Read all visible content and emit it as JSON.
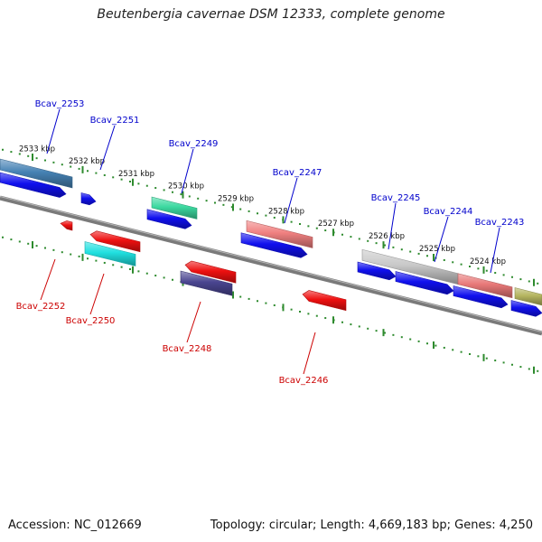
{
  "title": "Beutenbergia cavernae DSM 12333, complete genome",
  "accession_text": "Accession: NC_012669",
  "summary_text": "Topology: circular; Length: 4,669,183 bp; Genes: 4,250",
  "colors": {
    "backbone": "#7a7a7a",
    "ticks": "#2e8b2e",
    "forward_label": "#0000cc",
    "reverse_label": "#cc0000"
  },
  "kbp_labels": [
    "2533 kbp",
    "2532 kbp",
    "2531 kbp",
    "2530 kbp",
    "2529 kbp",
    "2528 kbp",
    "2527 kbp",
    "2526 kbp",
    "2525 kbp",
    "2524 kbp"
  ],
  "forward_genes": [
    {
      "label": "Bcav_2253",
      "color": "#4682b4"
    },
    {
      "label": "Bcav_2251",
      "color": "#1010ee"
    },
    {
      "label": "Bcav_2249",
      "color": "#3cd9a0"
    },
    {
      "label": "Bcav_2247",
      "color": "#f08080"
    },
    {
      "label": "Bcav_2245",
      "color": "#c8c8c8"
    },
    {
      "label": "Bcav_2244",
      "color": "#e87878"
    },
    {
      "label": "Bcav_2243",
      "color": "#b5b560"
    }
  ],
  "reverse_genes": [
    {
      "label": "Bcav_2252",
      "color": "#ee1010"
    },
    {
      "label": "Bcav_2250",
      "color": "#20e0e0"
    },
    {
      "label": "Bcav_2248",
      "color": "#4a4590"
    },
    {
      "label": "Bcav_2246",
      "color": "#ee1010"
    }
  ]
}
